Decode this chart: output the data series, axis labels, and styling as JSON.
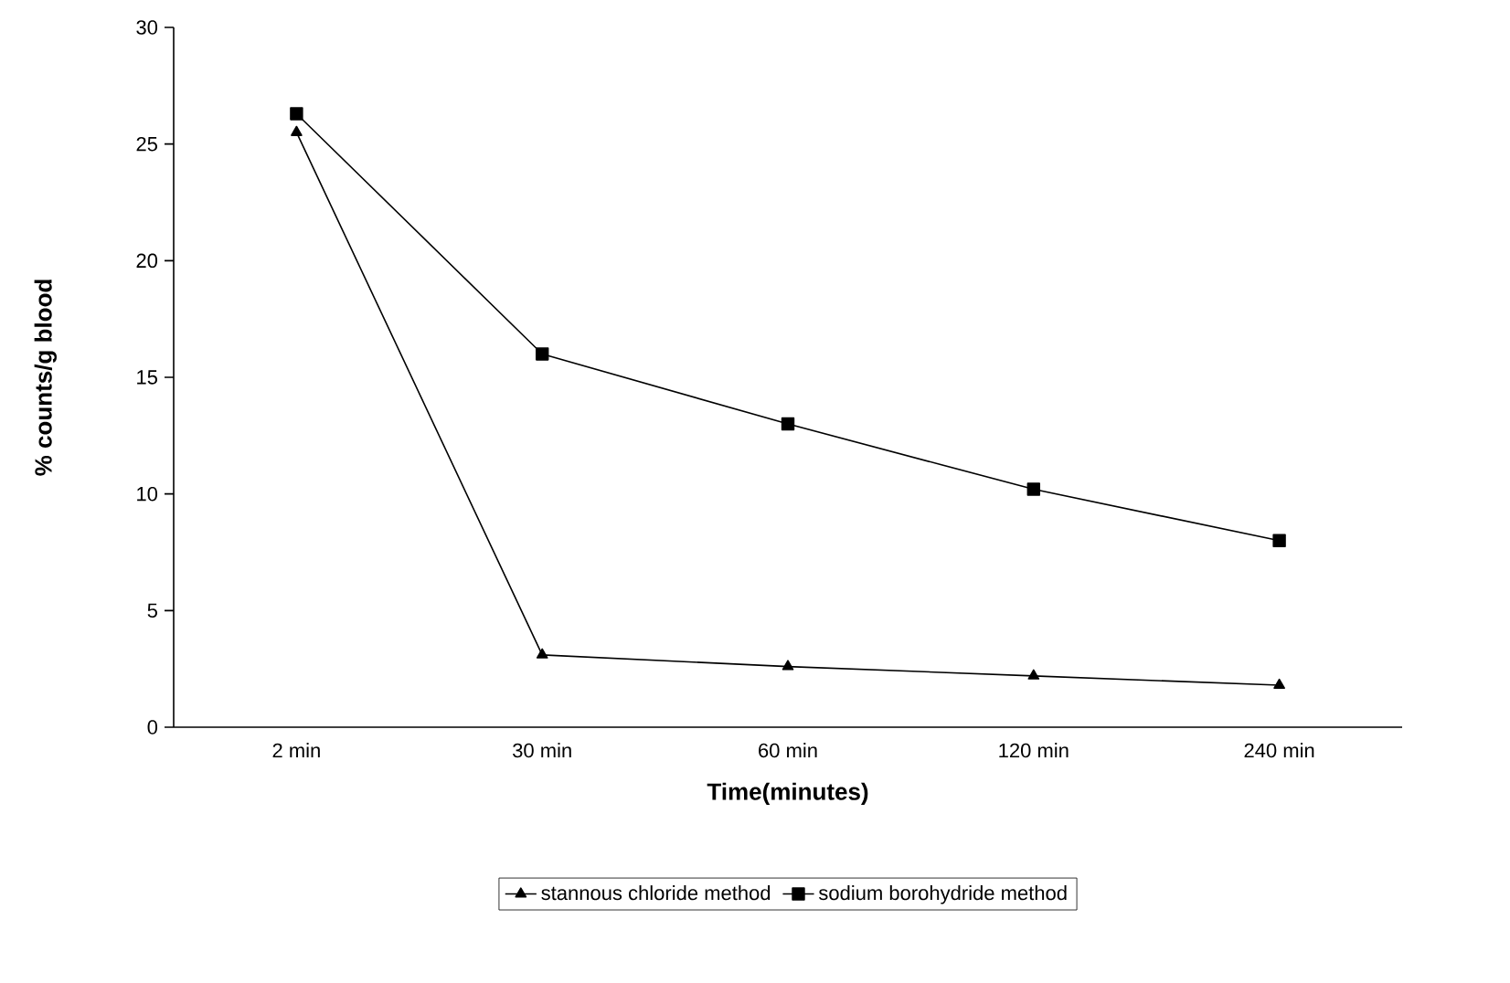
{
  "chart_data": {
    "type": "line",
    "xlabel": "Time(minutes)",
    "ylabel": "% counts/g blood",
    "categories": [
      "2 min",
      "30 min",
      "60 min",
      "120 min",
      "240 min"
    ],
    "series": [
      {
        "name": "stannous chloride method",
        "color": "#000000",
        "marker": "triangle",
        "values": [
          25.5,
          3.1,
          2.6,
          2.2,
          1.8
        ]
      },
      {
        "name": "sodium borohydride method",
        "color": "#000000",
        "marker": "square",
        "values": [
          26.3,
          16,
          13,
          10.2,
          8
        ]
      }
    ],
    "ylim": [
      0,
      30
    ],
    "yticks": [
      0,
      5,
      10,
      15,
      20,
      25,
      30
    ],
    "grid": false,
    "legend": "bottom",
    "line_style": "solid"
  }
}
